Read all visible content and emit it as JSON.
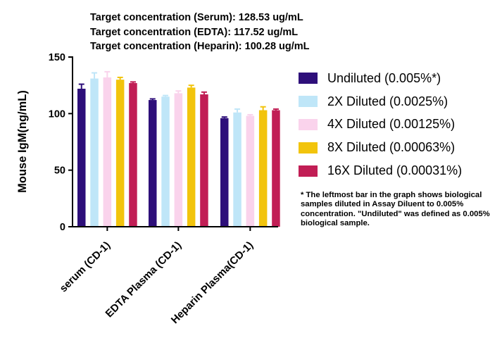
{
  "targets": [
    "Target concentration (Serum): 128.53 ug/mL",
    "Target concentration (EDTA): 117.52 ug/mL",
    "Target concentration (Heparin): 100.28 ug/mL"
  ],
  "footnote": "* The leftmost bar in the graph shows biological samples diluted in Assay Diluent to 0.005% concentration. \"Undiluted\" was defined as 0.005% biological sample.",
  "chart_data": {
    "type": "bar",
    "title": "",
    "xlabel": "",
    "ylabel": "Mouse IgM(ng/mL)",
    "ylim": [
      0,
      150
    ],
    "yticks": [
      0,
      50,
      100,
      150
    ],
    "categories": [
      "serum (CD-1)",
      "EDTA Plasma (CD-1)",
      "Heparin Plasma(CD-1)"
    ],
    "legend_position": "right",
    "grid": false,
    "series": [
      {
        "name": "Undiluted (0.005%*)",
        "color": "#2e0f7a",
        "values": [
          122,
          112,
          96
        ],
        "errors": [
          4,
          1,
          1
        ]
      },
      {
        "name": "2X Diluted (0.0025%)",
        "color": "#bfe6f8",
        "values": [
          131,
          115,
          101
        ],
        "errors": [
          5,
          1,
          3
        ]
      },
      {
        "name": "4X Diluted (0.00125%)",
        "color": "#fad3ec",
        "values": [
          132,
          118,
          98
        ],
        "errors": [
          5,
          2,
          1
        ]
      },
      {
        "name": "8X Diluted (0.00063%)",
        "color": "#f2c40c",
        "values": [
          130,
          123,
          103
        ],
        "errors": [
          2,
          2,
          3
        ]
      },
      {
        "name": "16X Diluted (0.00031%)",
        "color": "#c11e55",
        "values": [
          127,
          117,
          103
        ],
        "errors": [
          1,
          2,
          1
        ]
      }
    ]
  }
}
